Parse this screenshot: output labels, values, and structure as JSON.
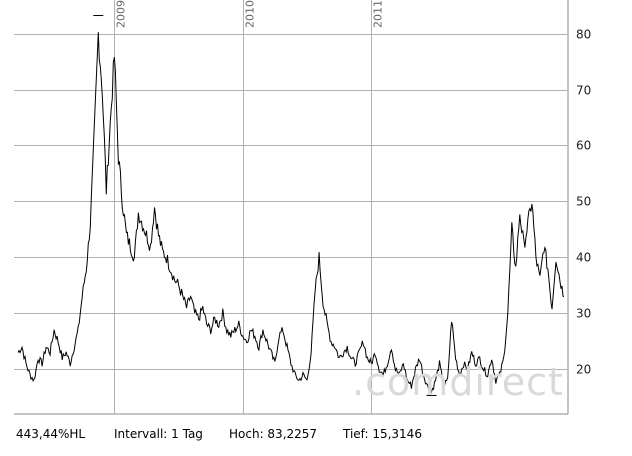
{
  "chart_data": {
    "type": "line",
    "y_axis_position": "right",
    "yticks": [
      20,
      30,
      40,
      50,
      60,
      70,
      80
    ],
    "xticks": [
      "2009",
      "2010",
      "2011"
    ],
    "ylim": [
      12,
      86
    ],
    "high": 83.2257,
    "low": 15.3146,
    "grid": true,
    "series": [
      {
        "values": [
          23,
          24,
          21,
          19,
          18,
          22,
          21,
          24,
          23,
          27,
          25,
          22,
          23,
          21,
          24,
          27,
          33,
          38,
          46,
          62,
          80,
          70,
          52,
          64,
          76,
          58,
          50,
          44,
          42,
          40,
          48,
          46,
          44,
          42,
          49,
          44,
          41,
          40,
          38,
          36,
          35,
          33,
          31,
          33,
          30,
          29,
          31,
          28,
          27,
          29,
          28,
          30,
          27,
          26,
          27,
          28,
          26,
          25,
          27,
          26,
          24,
          27,
          25,
          23,
          21,
          26,
          27,
          24,
          21,
          19,
          18,
          19,
          18,
          23,
          34,
          40,
          32,
          28,
          25,
          24,
          22,
          23,
          24,
          22,
          21,
          23,
          25,
          22,
          21,
          23,
          20,
          19,
          21,
          24,
          20,
          19,
          21,
          18,
          17,
          20,
          22,
          19,
          17,
          16,
          18,
          21,
          17,
          18,
          29,
          22,
          19,
          21,
          20,
          23,
          21,
          22,
          20,
          19,
          22,
          18,
          19,
          22,
          30,
          45,
          38,
          48,
          42,
          46,
          50,
          40,
          36,
          42,
          38,
          31,
          40,
          36,
          33
        ]
      }
    ]
  },
  "footer": {
    "range": "443,44%HL",
    "interval": "Intervall: 1 Tag",
    "high": "Hoch: 83,2257",
    "low": "Tief: 15,3146"
  },
  "watermark": ".comdirect"
}
